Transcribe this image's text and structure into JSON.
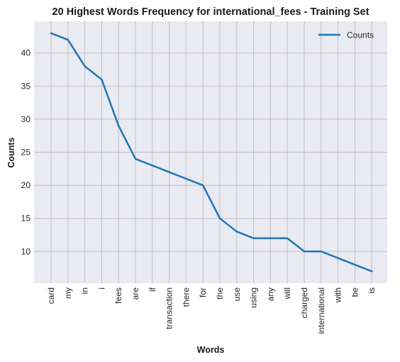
{
  "chart_data": {
    "type": "line",
    "title": "20 Highest Words Frequency for international_fees - Training Set",
    "xlabel": "Words",
    "ylabel": "Counts",
    "categories": [
      "card",
      "my",
      "in",
      "i",
      "fees",
      "are",
      "if",
      "transaction",
      "there",
      "for",
      "the",
      "use",
      "using",
      "any",
      "will",
      "charged",
      "international",
      "with",
      "be",
      "is"
    ],
    "series": [
      {
        "name": "Counts",
        "values": [
          43,
          42,
          38,
          36,
          29,
          24,
          23,
          22,
          21,
          20,
          15,
          13,
          12,
          12,
          12,
          10,
          10,
          9,
          8,
          7
        ],
        "color": "#1f77b4"
      }
    ],
    "yticks": [
      10,
      15,
      20,
      25,
      30,
      35,
      40
    ],
    "ylim": [
      5.2,
      44.8
    ],
    "grid": true,
    "legend": "top-right",
    "background": "#eaeaf2",
    "grid_color": "#c0c0c0"
  }
}
